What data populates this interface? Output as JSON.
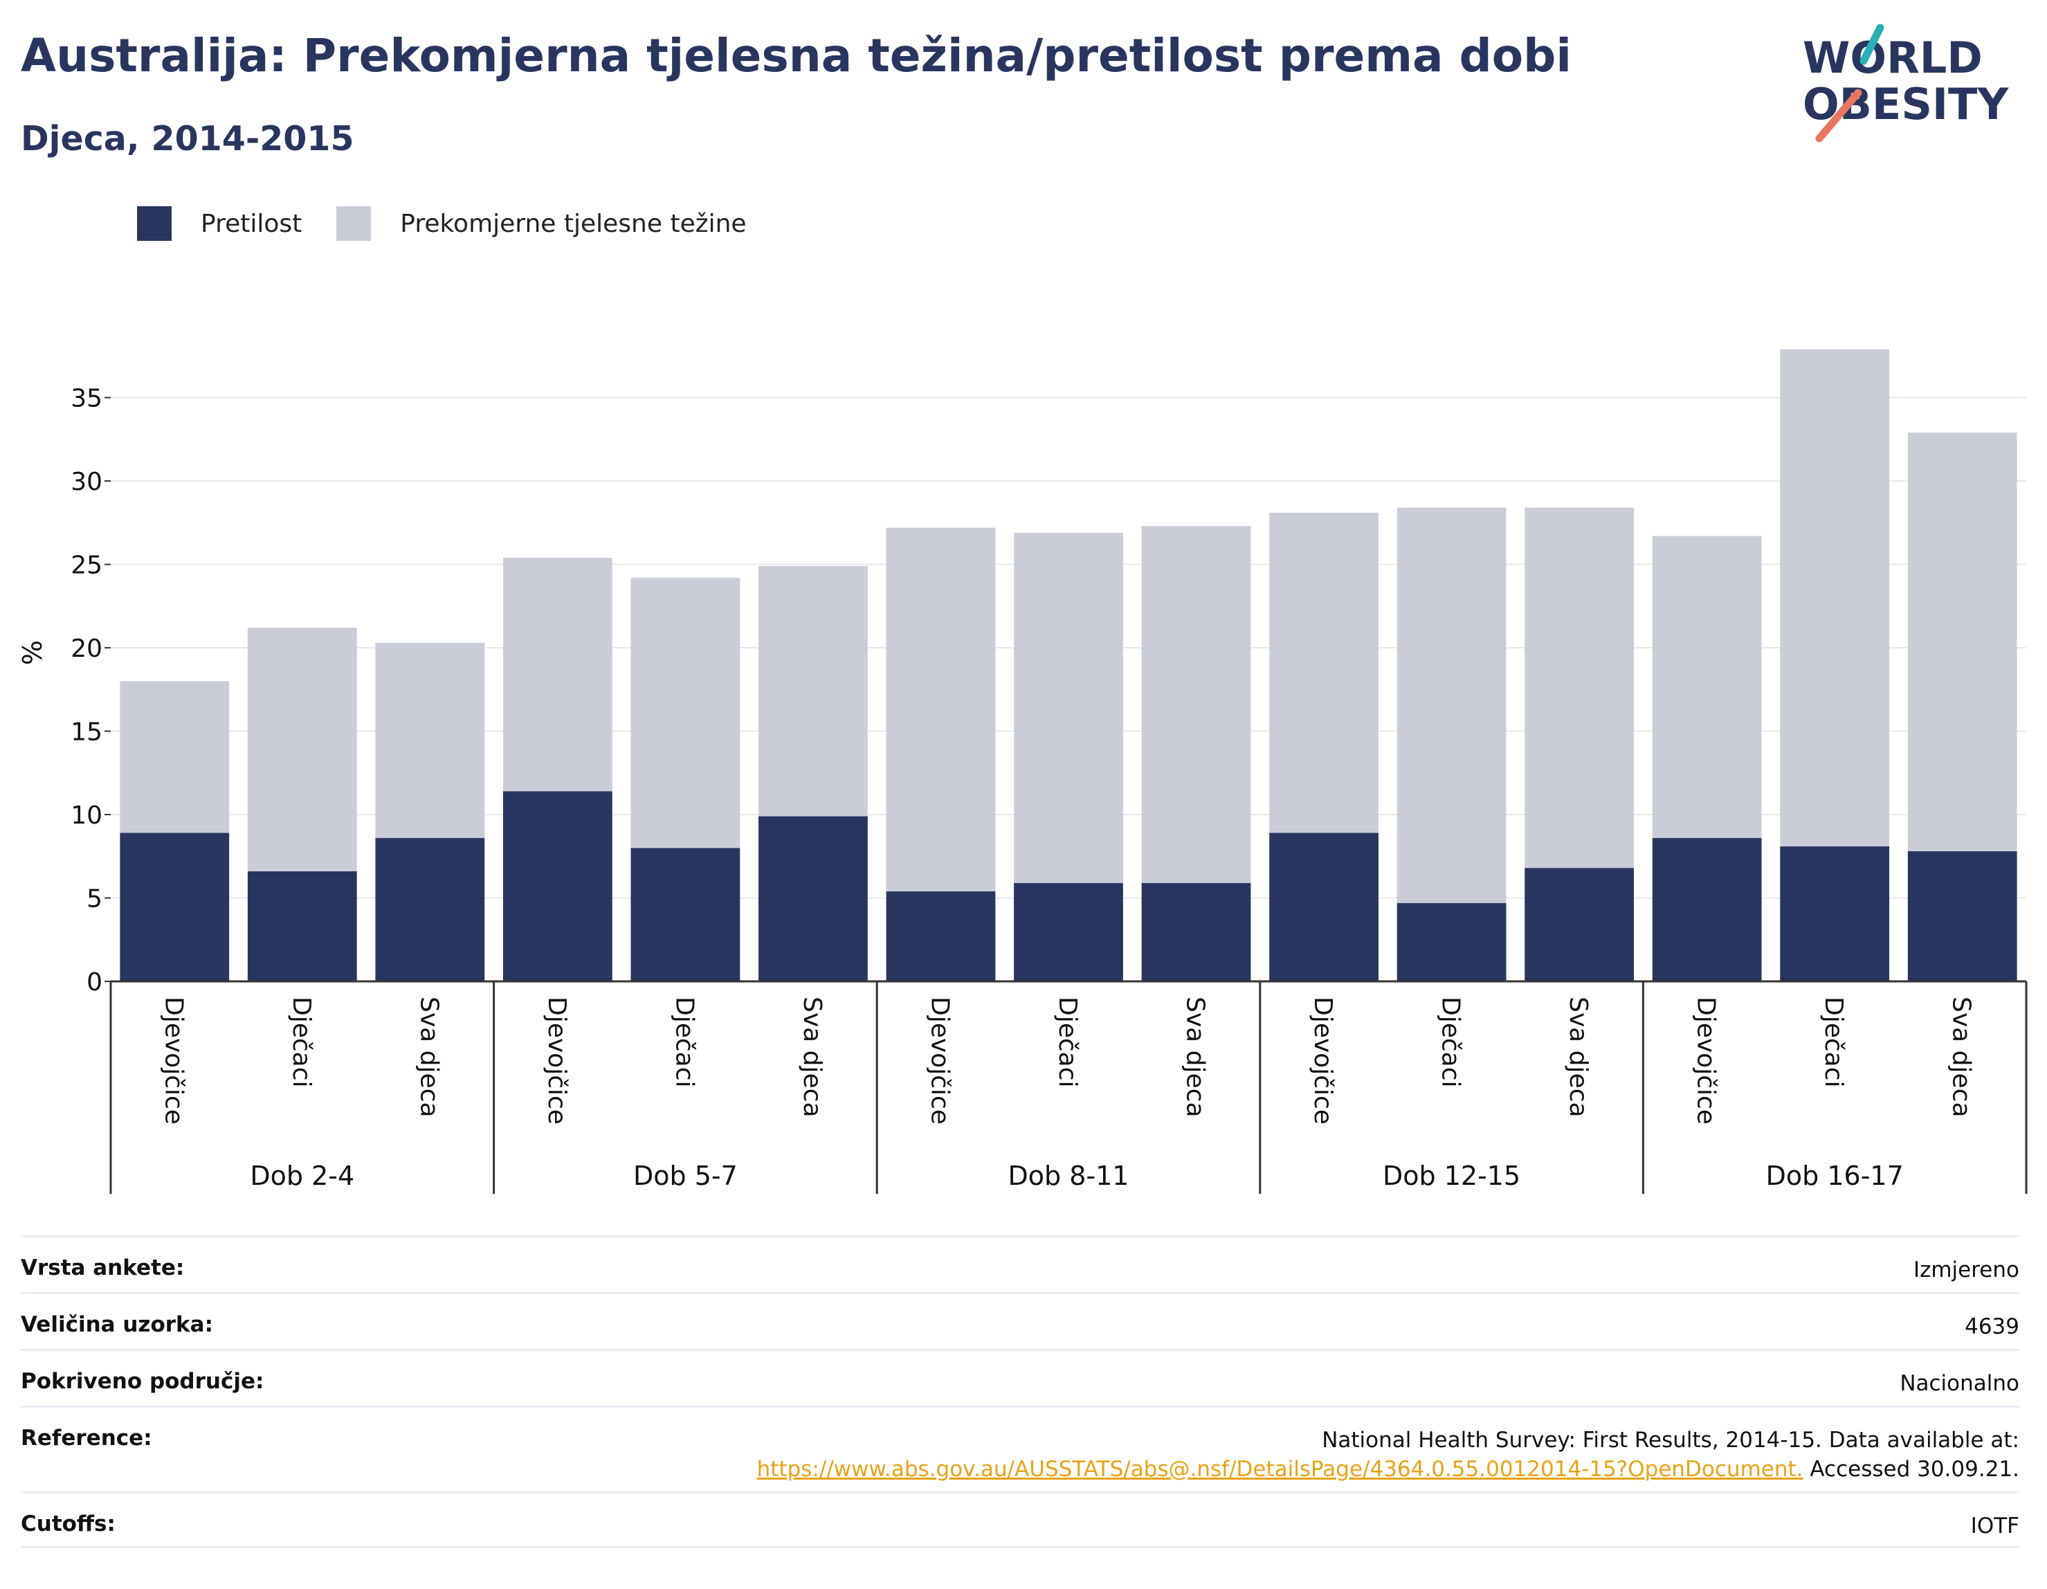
{
  "header": {
    "title": "Australija: Prekomjerna tjelesna težina/pretilost prema dobi",
    "subtitle": "Djeca, 2014-2015"
  },
  "logo": {
    "line1": "WORLD",
    "line2": "OBESITY",
    "colors": {
      "text": "#28365f",
      "slash_teal": "#2ab0b5",
      "slash_coral": "#e8765e"
    }
  },
  "legend": [
    {
      "label": "Pretilost",
      "color": "#28365f"
    },
    {
      "label": "Prekomjerne tjelesne težine",
      "color": "#caccd8"
    }
  ],
  "chart_data": {
    "type": "bar",
    "stacked": true,
    "ylabel": "%",
    "ylim": [
      0,
      38
    ],
    "yticks": [
      0,
      5,
      10,
      15,
      20,
      25,
      30,
      35
    ],
    "grid": true,
    "legend_position": "top-left",
    "groups": [
      {
        "label": "Dob 2-4",
        "categories": [
          "Djevojčice",
          "Dječaci",
          "Sva djeca"
        ]
      },
      {
        "label": "Dob 5-7",
        "categories": [
          "Djevojčice",
          "Dječaci",
          "Sva djeca"
        ]
      },
      {
        "label": "Dob 8-11",
        "categories": [
          "Djevojčice",
          "Dječaci",
          "Sva djeca"
        ]
      },
      {
        "label": "Dob 12-15",
        "categories": [
          "Djevojčice",
          "Dječaci",
          "Sva djeca"
        ]
      },
      {
        "label": "Dob 16-17",
        "categories": [
          "Djevojčice",
          "Dječaci",
          "Sva djeca"
        ]
      }
    ],
    "series": [
      {
        "name": "Pretilost",
        "color": "#28365f",
        "values": [
          8.9,
          6.6,
          8.6,
          11.4,
          8.0,
          9.9,
          5.4,
          5.9,
          5.9,
          8.9,
          4.7,
          6.8,
          8.6,
          8.1,
          7.8
        ]
      },
      {
        "name": "Prekomjerne tjelesne težine",
        "color": "#caccd8",
        "values": [
          9.1,
          14.6,
          11.7,
          14.0,
          16.2,
          15.0,
          21.8,
          21.0,
          21.4,
          19.2,
          23.7,
          21.6,
          18.1,
          29.8,
          25.1
        ]
      }
    ]
  },
  "meta": [
    {
      "key": "Vrsta ankete:",
      "value": "Izmjereno"
    },
    {
      "key": "Veličina uzorka:",
      "value": "4639"
    },
    {
      "key": "Pokriveno područje:",
      "value": "Nacionalno"
    },
    {
      "key": "Reference:",
      "value_line1": "National Health Survey: First Results, 2014-15. Data available at:",
      "value_link": "https://www.abs.gov.au/AUSSTATS/abs@.nsf/DetailsPage/4364.0.55.0012014-15?OpenDocument.",
      "value_suffix": " Accessed 30.09.21."
    },
    {
      "key": "Cutoffs:",
      "value": "IOTF"
    }
  ]
}
